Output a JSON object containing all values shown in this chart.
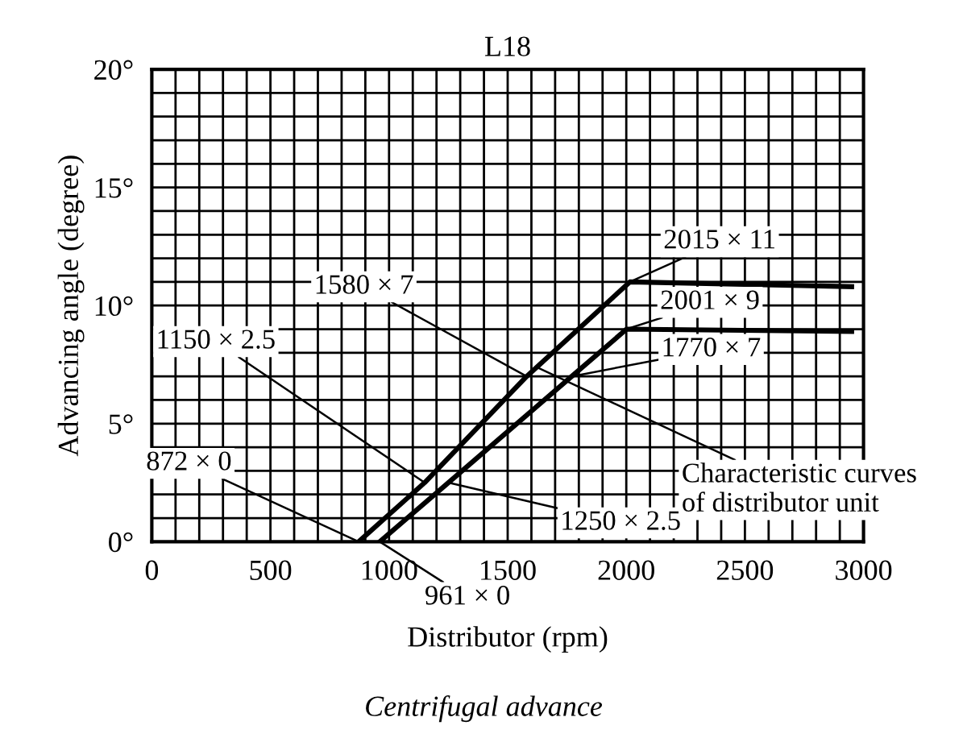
{
  "chart_data": {
    "type": "line",
    "title": "L18",
    "xlabel": "Distributor (rpm)",
    "ylabel": "Advancing angle (degree)",
    "series": [
      {
        "color": "#000000",
        "x": [
          872,
          1150,
          1580,
          2015,
          2950
        ],
        "values": [
          0,
          2.5,
          7,
          11,
          10.8
        ]
      },
      {
        "color": "#000000",
        "x": [
          961,
          1250,
          1770,
          2001,
          2950
        ],
        "values": [
          0,
          2.5,
          7,
          9,
          8.9
        ]
      }
    ],
    "xlim": [
      0,
      3000
    ],
    "ylim": [
      0,
      20
    ],
    "xticks": [
      0,
      {
        "value": 100,
        "label": null
      },
      {
        "value": 200,
        "label": null
      },
      {
        "value": 300,
        "label": null
      },
      {
        "value": 400,
        "label": null
      },
      500,
      {
        "value": 600,
        "label": null
      },
      {
        "value": 700,
        "label": null
      },
      {
        "value": 800,
        "label": null
      },
      {
        "value": 900,
        "label": null
      },
      1000,
      {
        "value": 1100,
        "label": null
      },
      {
        "value": 1200,
        "label": null
      },
      {
        "value": 1300,
        "label": null
      },
      {
        "value": 1400,
        "label": null
      },
      1500,
      {
        "value": 1600,
        "label": null
      },
      {
        "value": 1700,
        "label": null
      },
      {
        "value": 1800,
        "label": null
      },
      {
        "value": 1900,
        "label": null
      },
      2000,
      {
        "value": 2100,
        "label": null
      },
      {
        "value": 2200,
        "label": null
      },
      {
        "value": 2300,
        "label": null
      },
      {
        "value": 2400,
        "label": null
      },
      2500,
      {
        "value": 2600,
        "label": null
      },
      {
        "value": 2700,
        "label": null
      },
      {
        "value": 2800,
        "label": null
      },
      {
        "value": 2900,
        "label": null
      },
      3000
    ],
    "yticks": [
      {
        "value": 0,
        "label": "0°"
      },
      {
        "value": 1,
        "label": null
      },
      {
        "value": 2,
        "label": null
      },
      {
        "value": 3,
        "label": null
      },
      {
        "value": 4,
        "label": null
      },
      {
        "value": 5,
        "label": "5°"
      },
      {
        "value": 6,
        "label": null
      },
      {
        "value": 7,
        "label": null
      },
      {
        "value": 8,
        "label": null
      },
      {
        "value": 9,
        "label": null
      },
      {
        "value": 10,
        "label": "10°"
      },
      {
        "value": 11,
        "label": null
      },
      {
        "value": 12,
        "label": null
      },
      {
        "value": 13,
        "label": null
      },
      {
        "value": 14,
        "label": null
      },
      {
        "value": 15,
        "label": "15°"
      },
      {
        "value": 16,
        "label": null
      },
      {
        "value": 17,
        "label": null
      },
      {
        "value": 18,
        "label": null
      },
      {
        "value": 19,
        "label": null
      },
      {
        "value": 20,
        "label": "20°"
      }
    ],
    "grid": true,
    "annotations": [
      {
        "text": "872 × 0",
        "x": 872,
        "y": 0
      },
      {
        "text": "1150 × 2.5",
        "x": 1150,
        "y": 2.5
      },
      {
        "text": "961 × 0",
        "x": 961,
        "y": 0
      },
      {
        "text": "1250 × 2.5",
        "x": 1250,
        "y": 2.5
      },
      {
        "text": "1580 × 7",
        "x": 1580,
        "y": 7
      },
      {
        "text": "1770 × 7",
        "x": 1770,
        "y": 7
      },
      {
        "text": "2015 × 11",
        "x": 2015,
        "y": 11
      },
      {
        "text": "2001 × 9",
        "x": 2001,
        "y": 9
      },
      {
        "text": "Characteristic curves\nof distributor unit",
        "x": 1620,
        "y": 7.4
      },
      "Centrifugal advance"
    ]
  }
}
